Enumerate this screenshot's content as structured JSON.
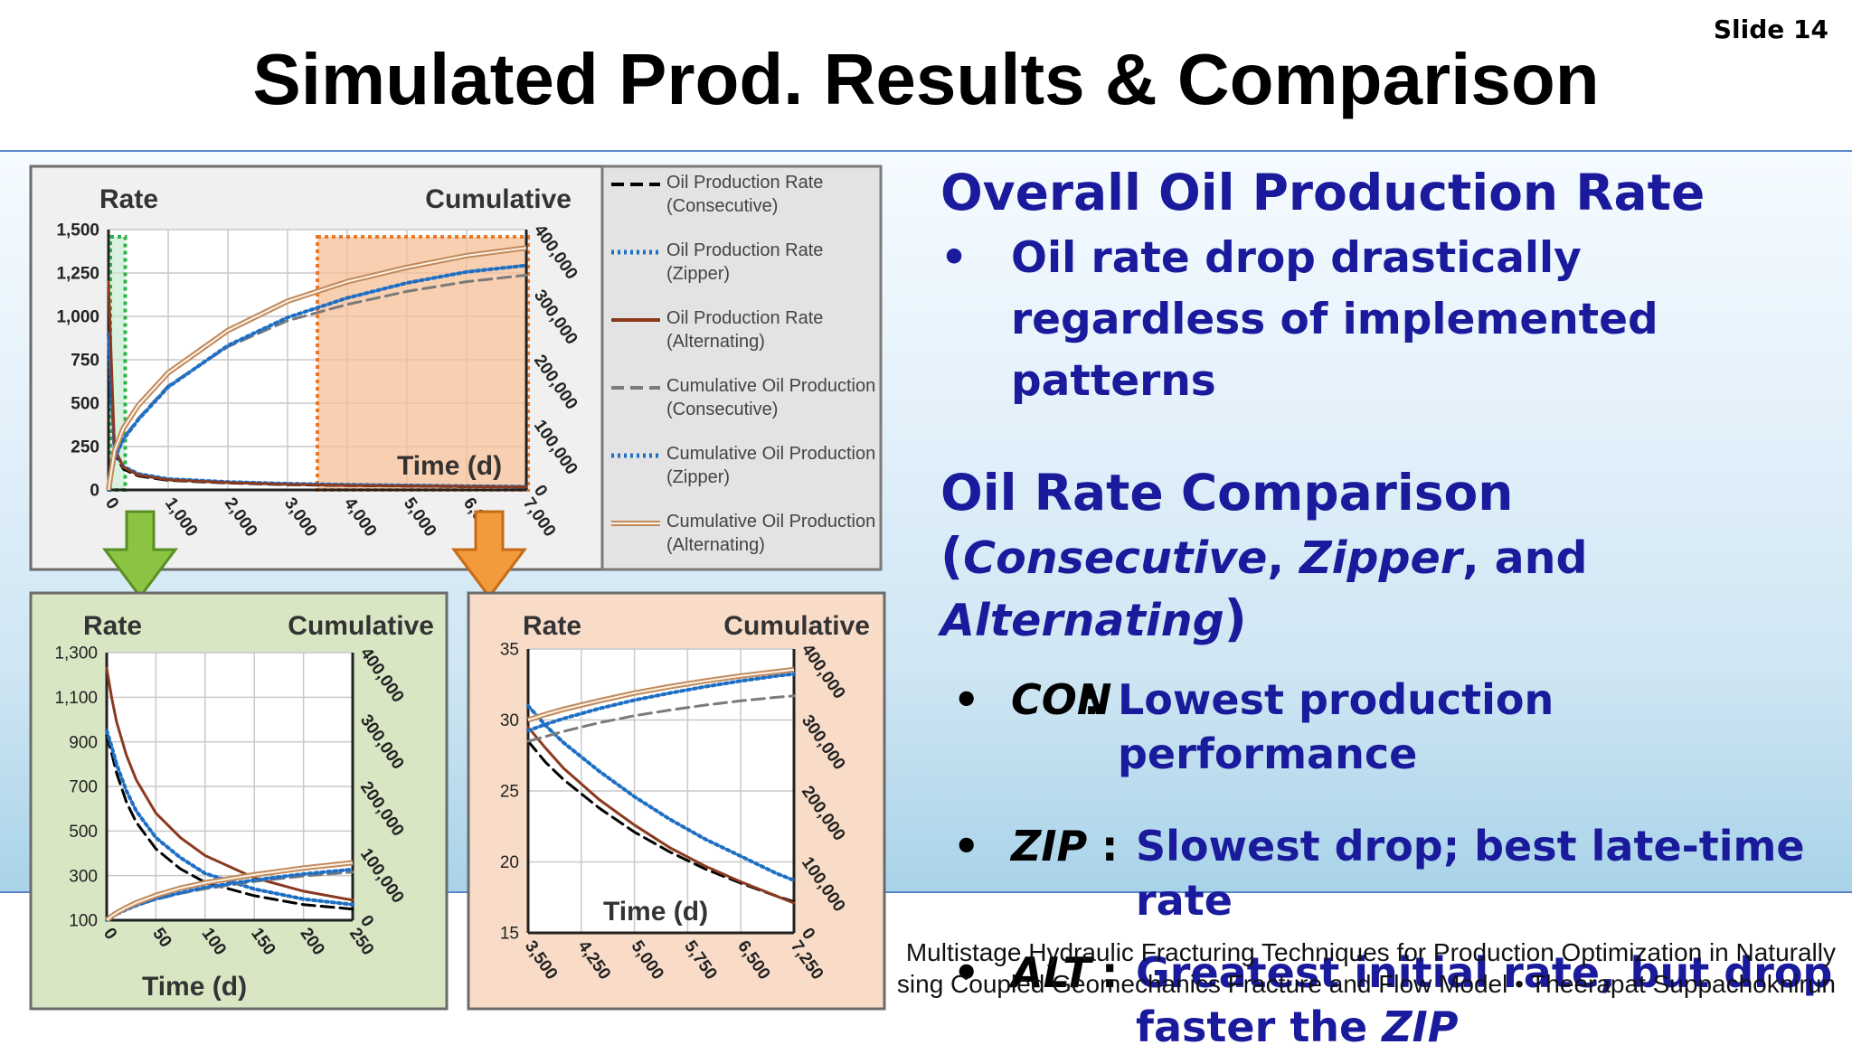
{
  "slide_number": "Slide 14",
  "title": "Simulated Prod. Results & Comparison",
  "text_panel": {
    "heading1": "Overall Oil Production Rate",
    "bullet1": "Oil rate drop drastically regardless of implemented patterns",
    "heading2": "Oil Rate Comparison",
    "subheading_parts": [
      "(",
      "Consecutive",
      ", ",
      "Zipper",
      ", and ",
      "Alternating",
      ")"
    ],
    "comparisons": [
      {
        "code": "CON",
        "colon": ":",
        "text": "Lowest production performance"
      },
      {
        "code": "ZIP",
        "colon": ":",
        "text": "Slowest drop; best late-time rate"
      },
      {
        "code": "ALT",
        "colon": ":",
        "text_before": "Greatest initial rate, but drop faster the ",
        "text_italic": "ZIP"
      }
    ]
  },
  "footer": {
    "line1": "Multistage Hydraulic Fracturing Techniques for Production Optimization in Naturally",
    "line2": "sing Coupled Geomechanics Fracture and Flow Model • Theerapat Suppachoknirun"
  },
  "colors": {
    "title_blue": "#1a1a9c",
    "band_border": "#5b86c9",
    "green_box": "#2db24a",
    "orange_box": "#e8782a",
    "con": "#000000",
    "zip": "#1e6fc4",
    "alt": "#8b3a1f",
    "cum_con": "#7a7a7a",
    "cum_zip": "#1e6fc4",
    "cum_alt": "#c08a5c"
  },
  "legend": [
    {
      "label": "Oil Production Rate (Consecutive)",
      "style": "dashed",
      "color": "#000000"
    },
    {
      "label": "Oil Production Rate (Zipper)",
      "style": "dotted",
      "color": "#1e6fc4"
    },
    {
      "label": "Oil Production Rate (Alternating)",
      "style": "solid",
      "color": "#8b3a1f"
    },
    {
      "label": "Cumulative Oil Production (Consecutive)",
      "style": "dashed",
      "color": "#7a7a7a"
    },
    {
      "label": "Cumulative Oil Production (Zipper)",
      "style": "dotted",
      "color": "#1e6fc4"
    },
    {
      "label": "Cumulative Oil Production (Alternating)",
      "style": "double",
      "color": "#c08a5c"
    }
  ],
  "chart_data": [
    {
      "type": "line",
      "ylabel_left": "Rate",
      "ylabel_right": "Cumulative",
      "xlabel": "Time (d)",
      "xlim": [
        0,
        7000
      ],
      "ylim_left": [
        0,
        1500
      ],
      "ylim_right": [
        0,
        400000
      ],
      "xticks": [
        "0",
        "1,000",
        "2,000",
        "3,000",
        "4,000",
        "5,000",
        "6,000",
        "7,000"
      ],
      "yticks_left": [
        "0",
        "250",
        "500",
        "750",
        "1,000",
        "1,250",
        "1,500"
      ],
      "yticks_right": [
        "0",
        "100,000",
        "200,000",
        "300,000",
        "400,000"
      ],
      "highlight_ranges": [
        [
          0,
          250
        ],
        [
          3500,
          7250
        ]
      ],
      "x": [
        0,
        100,
        250,
        500,
        1000,
        2000,
        3000,
        4000,
        5000,
        6000,
        7000
      ],
      "series": [
        {
          "name": "Oil Production Rate (Consecutive)",
          "axis": "left",
          "values": [
            900,
            210,
            120,
            80,
            55,
            40,
            30,
            25,
            22,
            19,
            17
          ]
        },
        {
          "name": "Oil Production Rate (Zipper)",
          "axis": "left",
          "values": [
            900,
            225,
            135,
            92,
            63,
            46,
            36,
            30,
            26,
            22,
            19
          ]
        },
        {
          "name": "Oil Production Rate (Alternating)",
          "axis": "left",
          "values": [
            1200,
            240,
            130,
            86,
            58,
            42,
            32,
            26,
            23,
            20,
            17
          ]
        },
        {
          "name": "Cumulative Oil Production (Consecutive)",
          "axis": "right",
          "values": [
            0,
            50000,
            80000,
            110000,
            160000,
            220000,
            260000,
            285000,
            305000,
            320000,
            330000
          ]
        },
        {
          "name": "Cumulative Oil Production (Zipper)",
          "axis": "right",
          "values": [
            0,
            48000,
            78000,
            108000,
            158000,
            222000,
            265000,
            295000,
            318000,
            335000,
            345000
          ]
        },
        {
          "name": "Cumulative Oil Production (Alternating)",
          "axis": "right",
          "values": [
            0,
            60000,
            95000,
            130000,
            180000,
            245000,
            290000,
            320000,
            342000,
            360000,
            372000
          ]
        }
      ]
    },
    {
      "type": "line",
      "ylabel_left": "Rate",
      "ylabel_right": "Cumulative",
      "xlabel": "Time (d)",
      "xlim": [
        0,
        250
      ],
      "ylim_left": [
        100,
        1300
      ],
      "ylim_right": [
        0,
        400000
      ],
      "xticks": [
        "0",
        "50",
        "100",
        "150",
        "200",
        "250"
      ],
      "yticks_left": [
        "100",
        "300",
        "500",
        "700",
        "900",
        "1,100",
        "1,300"
      ],
      "yticks_right": [
        "0",
        "100,000",
        "200,000",
        "300,000",
        "400,000"
      ],
      "x": [
        0,
        5,
        10,
        20,
        30,
        50,
        75,
        100,
        150,
        200,
        250
      ],
      "series": [
        {
          "name": "Oil Production Rate (Consecutive)",
          "axis": "left",
          "values": [
            930,
            850,
            760,
            630,
            540,
            420,
            330,
            270,
            210,
            170,
            150
          ]
        },
        {
          "name": "Oil Production Rate (Zipper)",
          "axis": "left",
          "values": [
            950,
            880,
            800,
            680,
            590,
            470,
            380,
            310,
            240,
            195,
            170
          ]
        },
        {
          "name": "Oil Production Rate (Alternating)",
          "axis": "left",
          "values": [
            1230,
            1100,
            990,
            840,
            730,
            580,
            470,
            390,
            290,
            230,
            190
          ]
        },
        {
          "name": "Cumulative Oil Production (Consecutive)",
          "axis": "right",
          "values": [
            0,
            5000,
            9000,
            16000,
            22000,
            31000,
            40000,
            47000,
            58000,
            66000,
            72000
          ]
        },
        {
          "name": "Cumulative Oil Production (Zipper)",
          "axis": "right",
          "values": [
            0,
            5000,
            9000,
            16000,
            22000,
            32000,
            41000,
            49000,
            60000,
            69000,
            76000
          ]
        },
        {
          "name": "Cumulative Oil Production (Alternating)",
          "axis": "right",
          "values": [
            0,
            6000,
            11000,
            19000,
            26000,
            37000,
            48000,
            56000,
            68000,
            78000,
            86000
          ]
        }
      ]
    },
    {
      "type": "line",
      "ylabel_left": "Rate",
      "ylabel_right": "Cumulative",
      "xlabel": "Time (d)",
      "xlim": [
        3500,
        7250
      ],
      "ylim_left": [
        15,
        35
      ],
      "ylim_right": [
        0,
        400000
      ],
      "xticks": [
        "3,500",
        "4,250",
        "5,000",
        "5,750",
        "6,500",
        "7,250"
      ],
      "yticks_left": [
        "15",
        "20",
        "25",
        "30",
        "35"
      ],
      "yticks_right": [
        "0",
        "100,000",
        "200,000",
        "300,000",
        "400,000"
      ],
      "x": [
        3500,
        3750,
        4000,
        4500,
        5000,
        5500,
        6000,
        6500,
        7000,
        7250
      ],
      "series": [
        {
          "name": "Oil Production Rate (Consecutive)",
          "axis": "left",
          "values": [
            28.5,
            27.0,
            25.8,
            23.8,
            22.1,
            20.7,
            19.5,
            18.5,
            17.6,
            17.2
          ]
        },
        {
          "name": "Oil Production Rate (Zipper)",
          "axis": "left",
          "values": [
            31.0,
            29.6,
            28.4,
            26.4,
            24.6,
            23.0,
            21.6,
            20.4,
            19.2,
            18.7
          ]
        },
        {
          "name": "Oil Production Rate (Alternating)",
          "axis": "left",
          "values": [
            29.5,
            28.0,
            26.6,
            24.4,
            22.6,
            21.0,
            19.7,
            18.6,
            17.6,
            17.1
          ]
        },
        {
          "name": "Cumulative Oil Production (Consecutive)",
          "axis": "right",
          "values": [
            270000,
            277000,
            284000,
            296000,
            306000,
            314000,
            321000,
            327000,
            332000,
            334000
          ]
        },
        {
          "name": "Cumulative Oil Production (Zipper)",
          "axis": "right",
          "values": [
            285000,
            294000,
            302000,
            316000,
            328000,
            338000,
            347000,
            355000,
            362000,
            365000
          ]
        },
        {
          "name": "Cumulative Oil Production (Alternating)",
          "axis": "right",
          "values": [
            300000,
            308000,
            315000,
            327000,
            338000,
            347000,
            355000,
            362000,
            368000,
            371000
          ]
        }
      ]
    }
  ]
}
